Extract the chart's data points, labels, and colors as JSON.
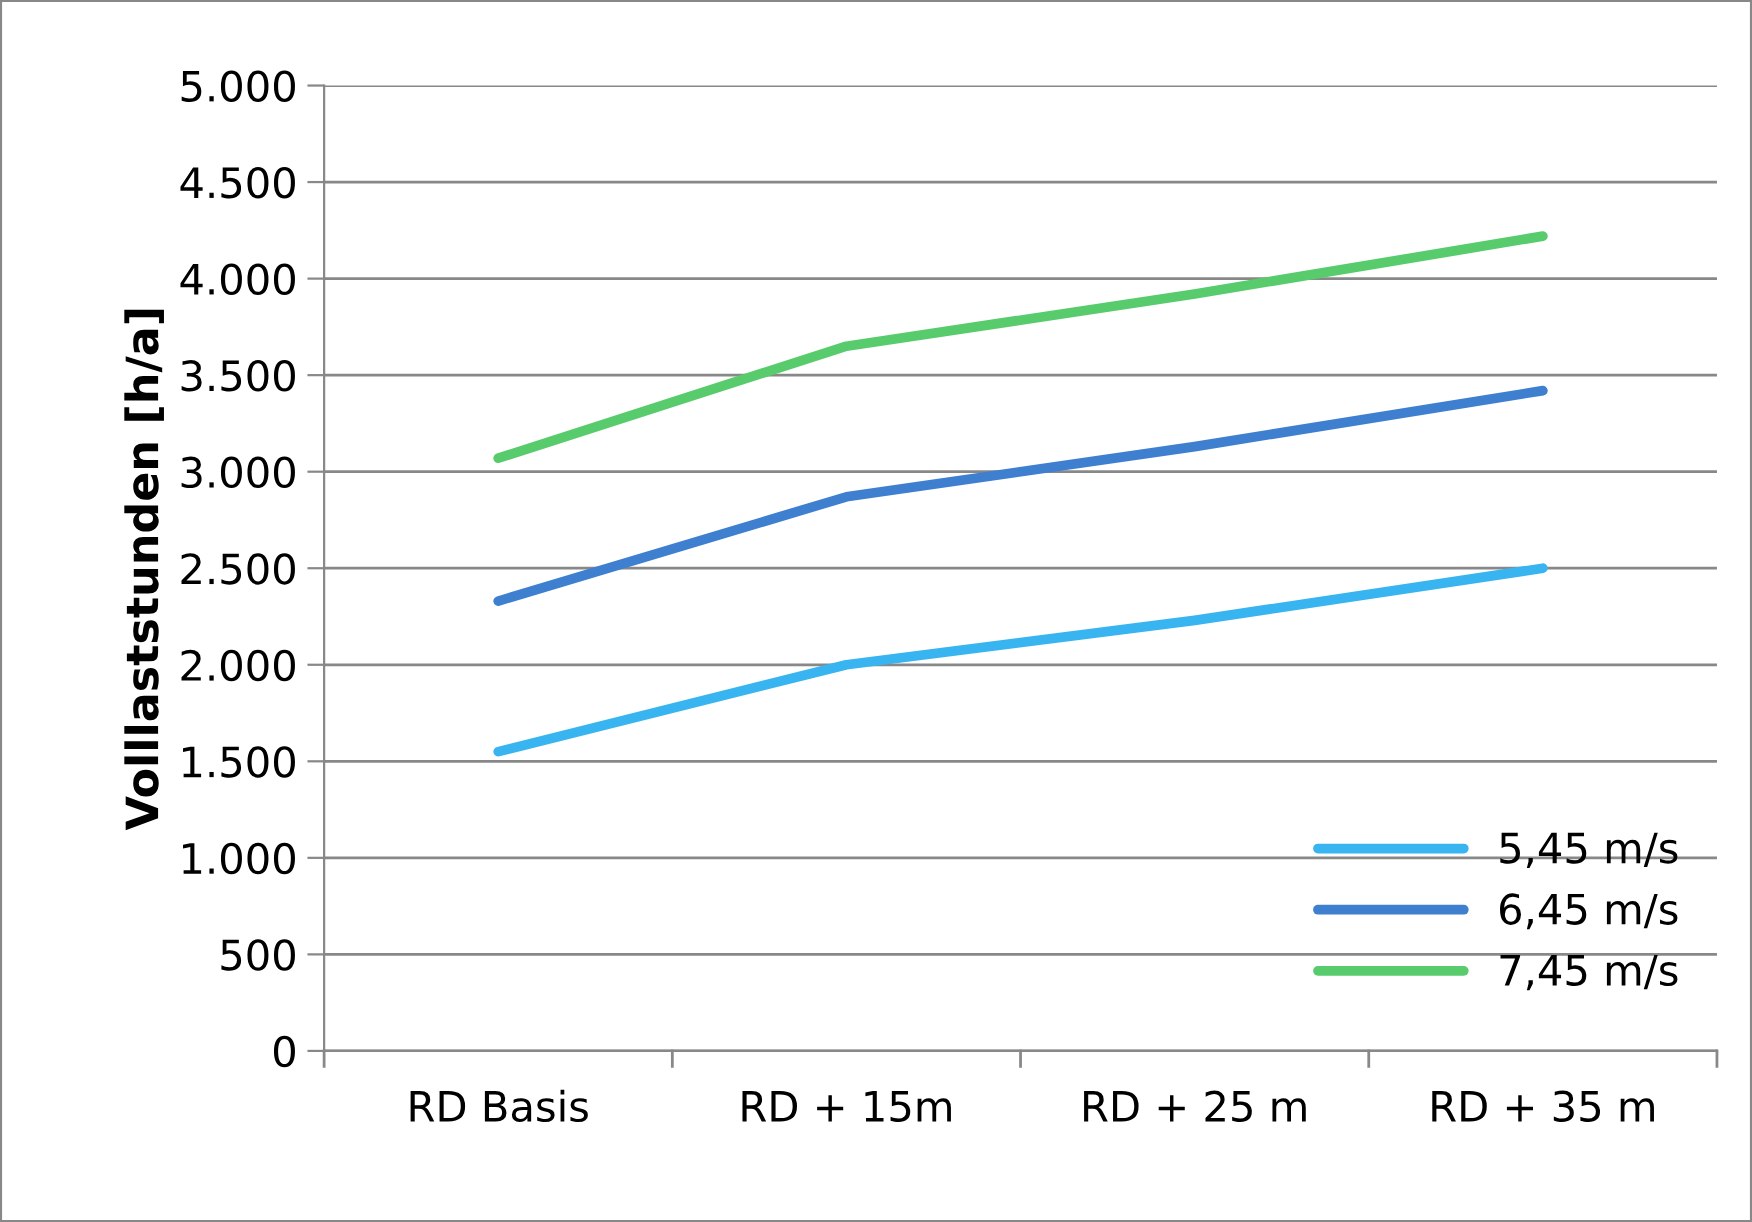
{
  "chart_data": {
    "type": "line",
    "ylabel": "Volllaststunden [h/a]",
    "categories": [
      "RD Basis",
      "RD + 15m",
      "RD + 25 m",
      "RD + 35 m"
    ],
    "series": [
      {
        "name": "5,45 m/s",
        "color": "#38b4f0",
        "values": [
          1550,
          2000,
          2230,
          2500
        ]
      },
      {
        "name": "6,45 m/s",
        "color": "#3f7fcf",
        "values": [
          2330,
          2870,
          3130,
          3420
        ]
      },
      {
        "name": "7,45 m/s",
        "color": "#58cc6c",
        "values": [
          3070,
          3650,
          3920,
          4220
        ]
      }
    ],
    "ylim": [
      0,
      5000
    ],
    "yticks": [
      0,
      500,
      {
        "value": 1000,
        "label": "1.000"
      },
      {
        "value": 1500,
        "label": "1.500"
      },
      {
        "value": 2000,
        "label": "2.000"
      },
      {
        "value": 2500,
        "label": "2.500"
      },
      {
        "value": 3000,
        "label": "3.000"
      },
      {
        "value": 3500,
        "label": "3.500"
      },
      {
        "value": 4000,
        "label": "4.000"
      },
      {
        "value": 4500,
        "label": "4.500"
      },
      {
        "value": 5000,
        "label": "5.000"
      }
    ],
    "grid": "y",
    "legend": "bottom right",
    "marker": "none",
    "line_style": "solid"
  }
}
